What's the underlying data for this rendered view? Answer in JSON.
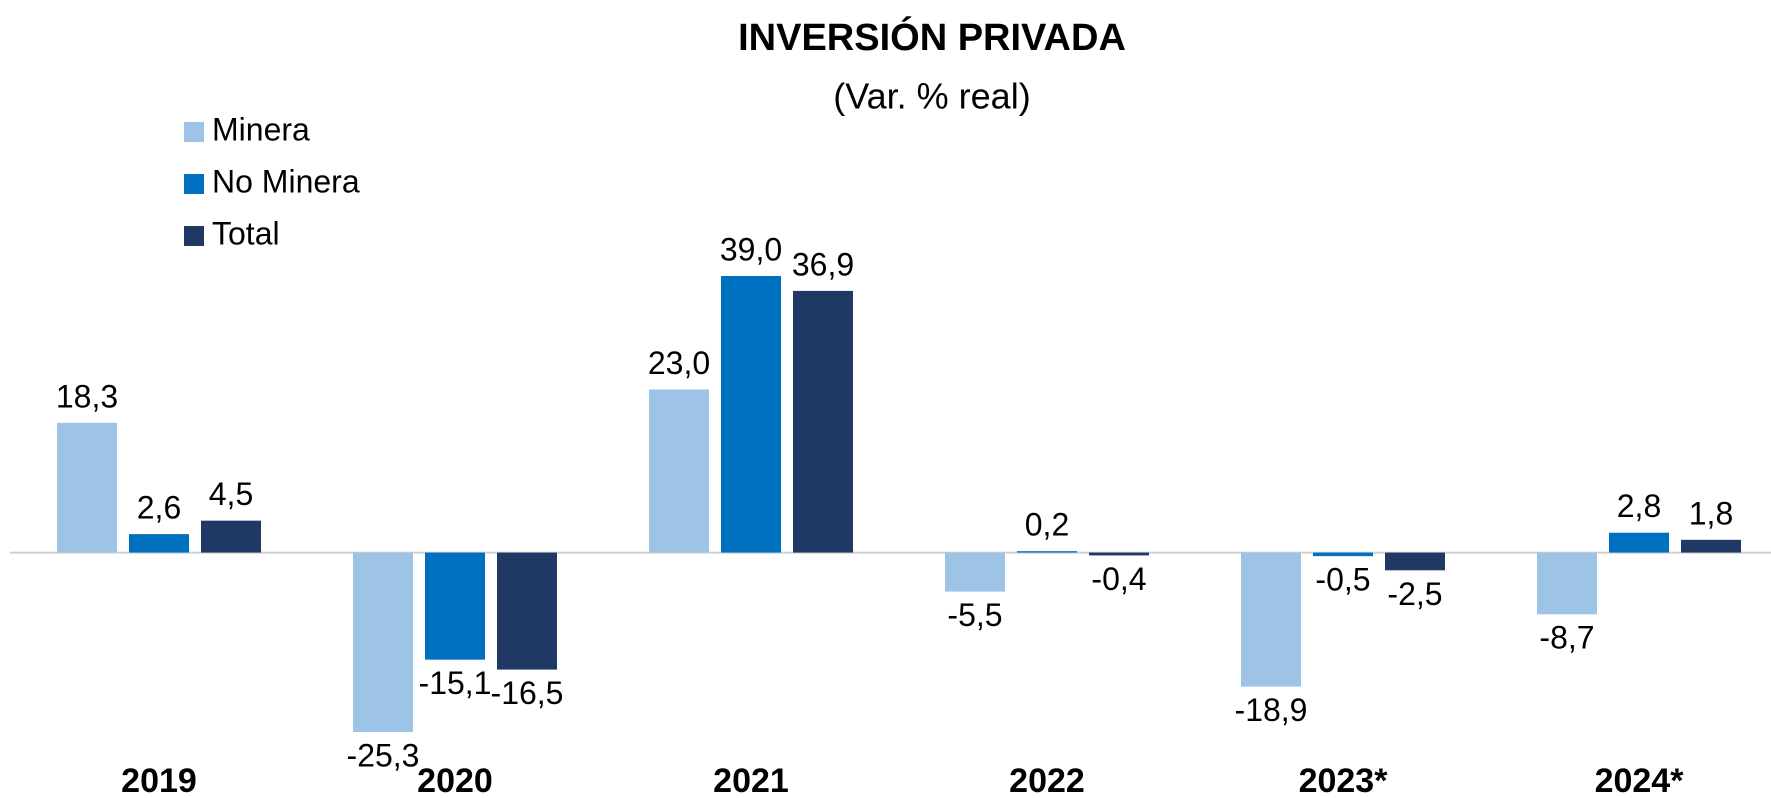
{
  "chart_data": {
    "type": "bar",
    "title": "INVERSIÓN PRIVADA",
    "subtitle": "(Var. % real)",
    "categories": [
      "2019",
      "2020",
      "2021",
      "2022",
      "2023*",
      "2024*"
    ],
    "legend": "top-left",
    "series": [
      {
        "name": "Minera",
        "color": "#9dc3e6",
        "values": [
          18.3,
          -25.3,
          23.0,
          -5.5,
          -18.9,
          -8.7
        ],
        "value_labels": [
          "18,3",
          "-25,3",
          "23,0",
          "-5,5",
          "-18,9",
          "-8,7"
        ]
      },
      {
        "name": "No Minera",
        "color": "#0070c0",
        "values": [
          2.6,
          -15.1,
          39.0,
          0.2,
          -0.5,
          2.8
        ],
        "value_labels": [
          "2,6",
          "-15,1",
          "39,0",
          "0,2",
          "-0,5",
          "2,8"
        ]
      },
      {
        "name": "Total",
        "color": "#203864",
        "values": [
          4.5,
          -16.5,
          36.9,
          -0.4,
          -2.5,
          1.8
        ],
        "value_labels": [
          "4,5",
          "-16,5",
          "36,9",
          "-0,4",
          "-2,5",
          "1,8"
        ]
      }
    ]
  }
}
